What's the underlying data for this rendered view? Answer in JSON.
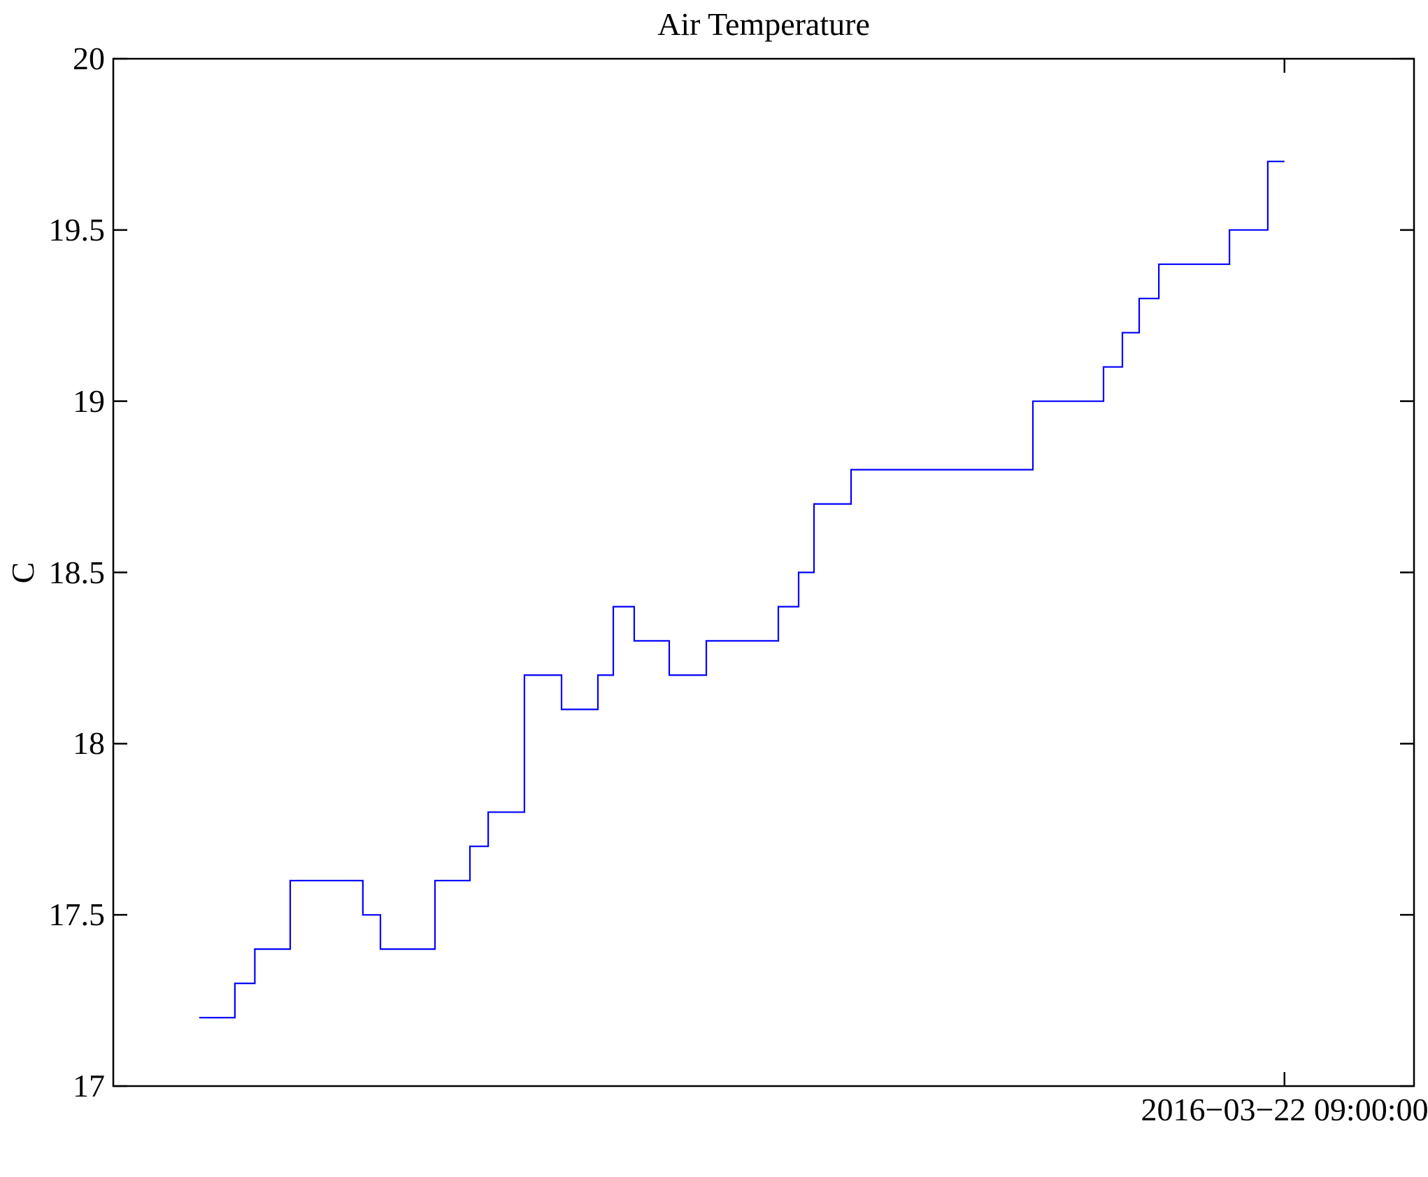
{
  "chart_data": {
    "type": "line",
    "line_style": "step",
    "title": "Air Temperature",
    "ylabel": "C",
    "xlabel": "",
    "ylim": [
      17,
      20
    ],
    "yticks": [
      17,
      17.5,
      18,
      18.5,
      19,
      19.5,
      20
    ],
    "ytick_labels": [
      "17",
      "17.5",
      "18",
      "18.5",
      "19",
      "19.5",
      "20"
    ],
    "xtick": {
      "pos_frac": 0.9004,
      "label": "2016−03−22 09:00:00"
    },
    "grid": false,
    "legend": null,
    "line_color": "#0000FF",
    "axis_color": "#000000",
    "unit": "C",
    "steps": [
      [
        0.0661,
        0.0935,
        17.2
      ],
      [
        0.0935,
        0.1088,
        17.3
      ],
      [
        0.1088,
        0.136,
        17.4
      ],
      [
        0.136,
        0.1919,
        17.6
      ],
      [
        0.1919,
        0.2054,
        17.5
      ],
      [
        0.2054,
        0.2473,
        17.4
      ],
      [
        0.2473,
        0.2742,
        17.6
      ],
      [
        0.2742,
        0.2882,
        17.7
      ],
      [
        0.2882,
        0.3161,
        17.8
      ],
      [
        0.3161,
        0.3446,
        18.2
      ],
      [
        0.3446,
        0.3726,
        18.1
      ],
      [
        0.3726,
        0.3844,
        18.2
      ],
      [
        0.3844,
        0.4005,
        18.4
      ],
      [
        0.4005,
        0.4274,
        18.3
      ],
      [
        0.4274,
        0.4559,
        18.2
      ],
      [
        0.4559,
        0.5113,
        18.3
      ],
      [
        0.5113,
        0.5269,
        18.4
      ],
      [
        0.5269,
        0.5387,
        18.5
      ],
      [
        0.5387,
        0.5672,
        18.7
      ],
      [
        0.5672,
        0.707,
        18.8
      ],
      [
        0.707,
        0.7613,
        19.0
      ],
      [
        0.7613,
        0.7758,
        19.1
      ],
      [
        0.7758,
        0.7887,
        19.2
      ],
      [
        0.7887,
        0.8038,
        19.3
      ],
      [
        0.8038,
        0.8581,
        19.4
      ],
      [
        0.8581,
        0.8876,
        19.5
      ],
      [
        0.8876,
        0.9004,
        19.7
      ]
    ]
  }
}
